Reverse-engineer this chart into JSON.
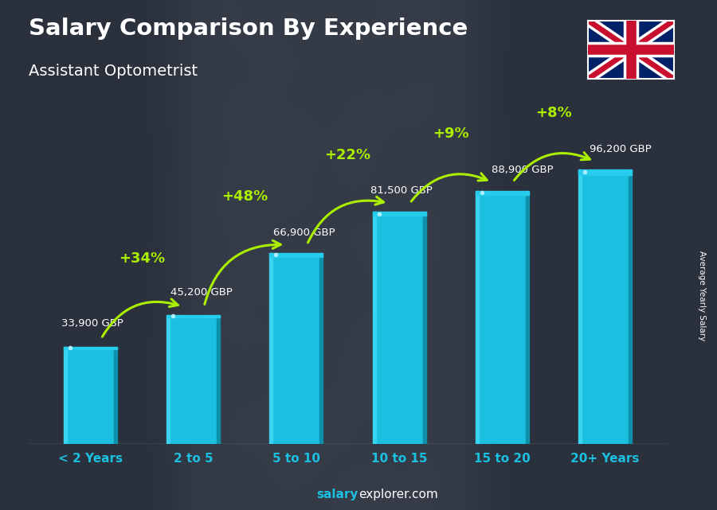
{
  "title": "Salary Comparison By Experience",
  "subtitle": "Assistant Optometrist",
  "categories": [
    "< 2 Years",
    "2 to 5",
    "5 to 10",
    "10 to 15",
    "15 to 20",
    "20+ Years"
  ],
  "values": [
    33900,
    45200,
    66900,
    81500,
    88900,
    96200
  ],
  "labels": [
    "33,900 GBP",
    "45,200 GBP",
    "66,900 GBP",
    "81,500 GBP",
    "88,900 GBP",
    "96,200 GBP"
  ],
  "pct_changes": [
    "+34%",
    "+48%",
    "+22%",
    "+9%",
    "+8%"
  ],
  "bar_color_main": "#1BBFE0",
  "bar_color_left": "#38D4F0",
  "bar_color_right": "#0E8FAA",
  "bar_color_top": "#25CCEC",
  "pct_color": "#AAEE00",
  "label_color": "#FFFFFF",
  "title_color": "#FFFFFF",
  "subtitle_color": "#FFFFFF",
  "bg_dark": "#1a2535",
  "footer_salary_color": "#FFFFFF",
  "footer_explorer_color": "#AAAAAA",
  "ylabel": "Average Yearly Salary",
  "ylim": [
    0,
    120000
  ],
  "bar_width": 0.52,
  "figsize": [
    9.0,
    6.41
  ],
  "dpi": 100
}
